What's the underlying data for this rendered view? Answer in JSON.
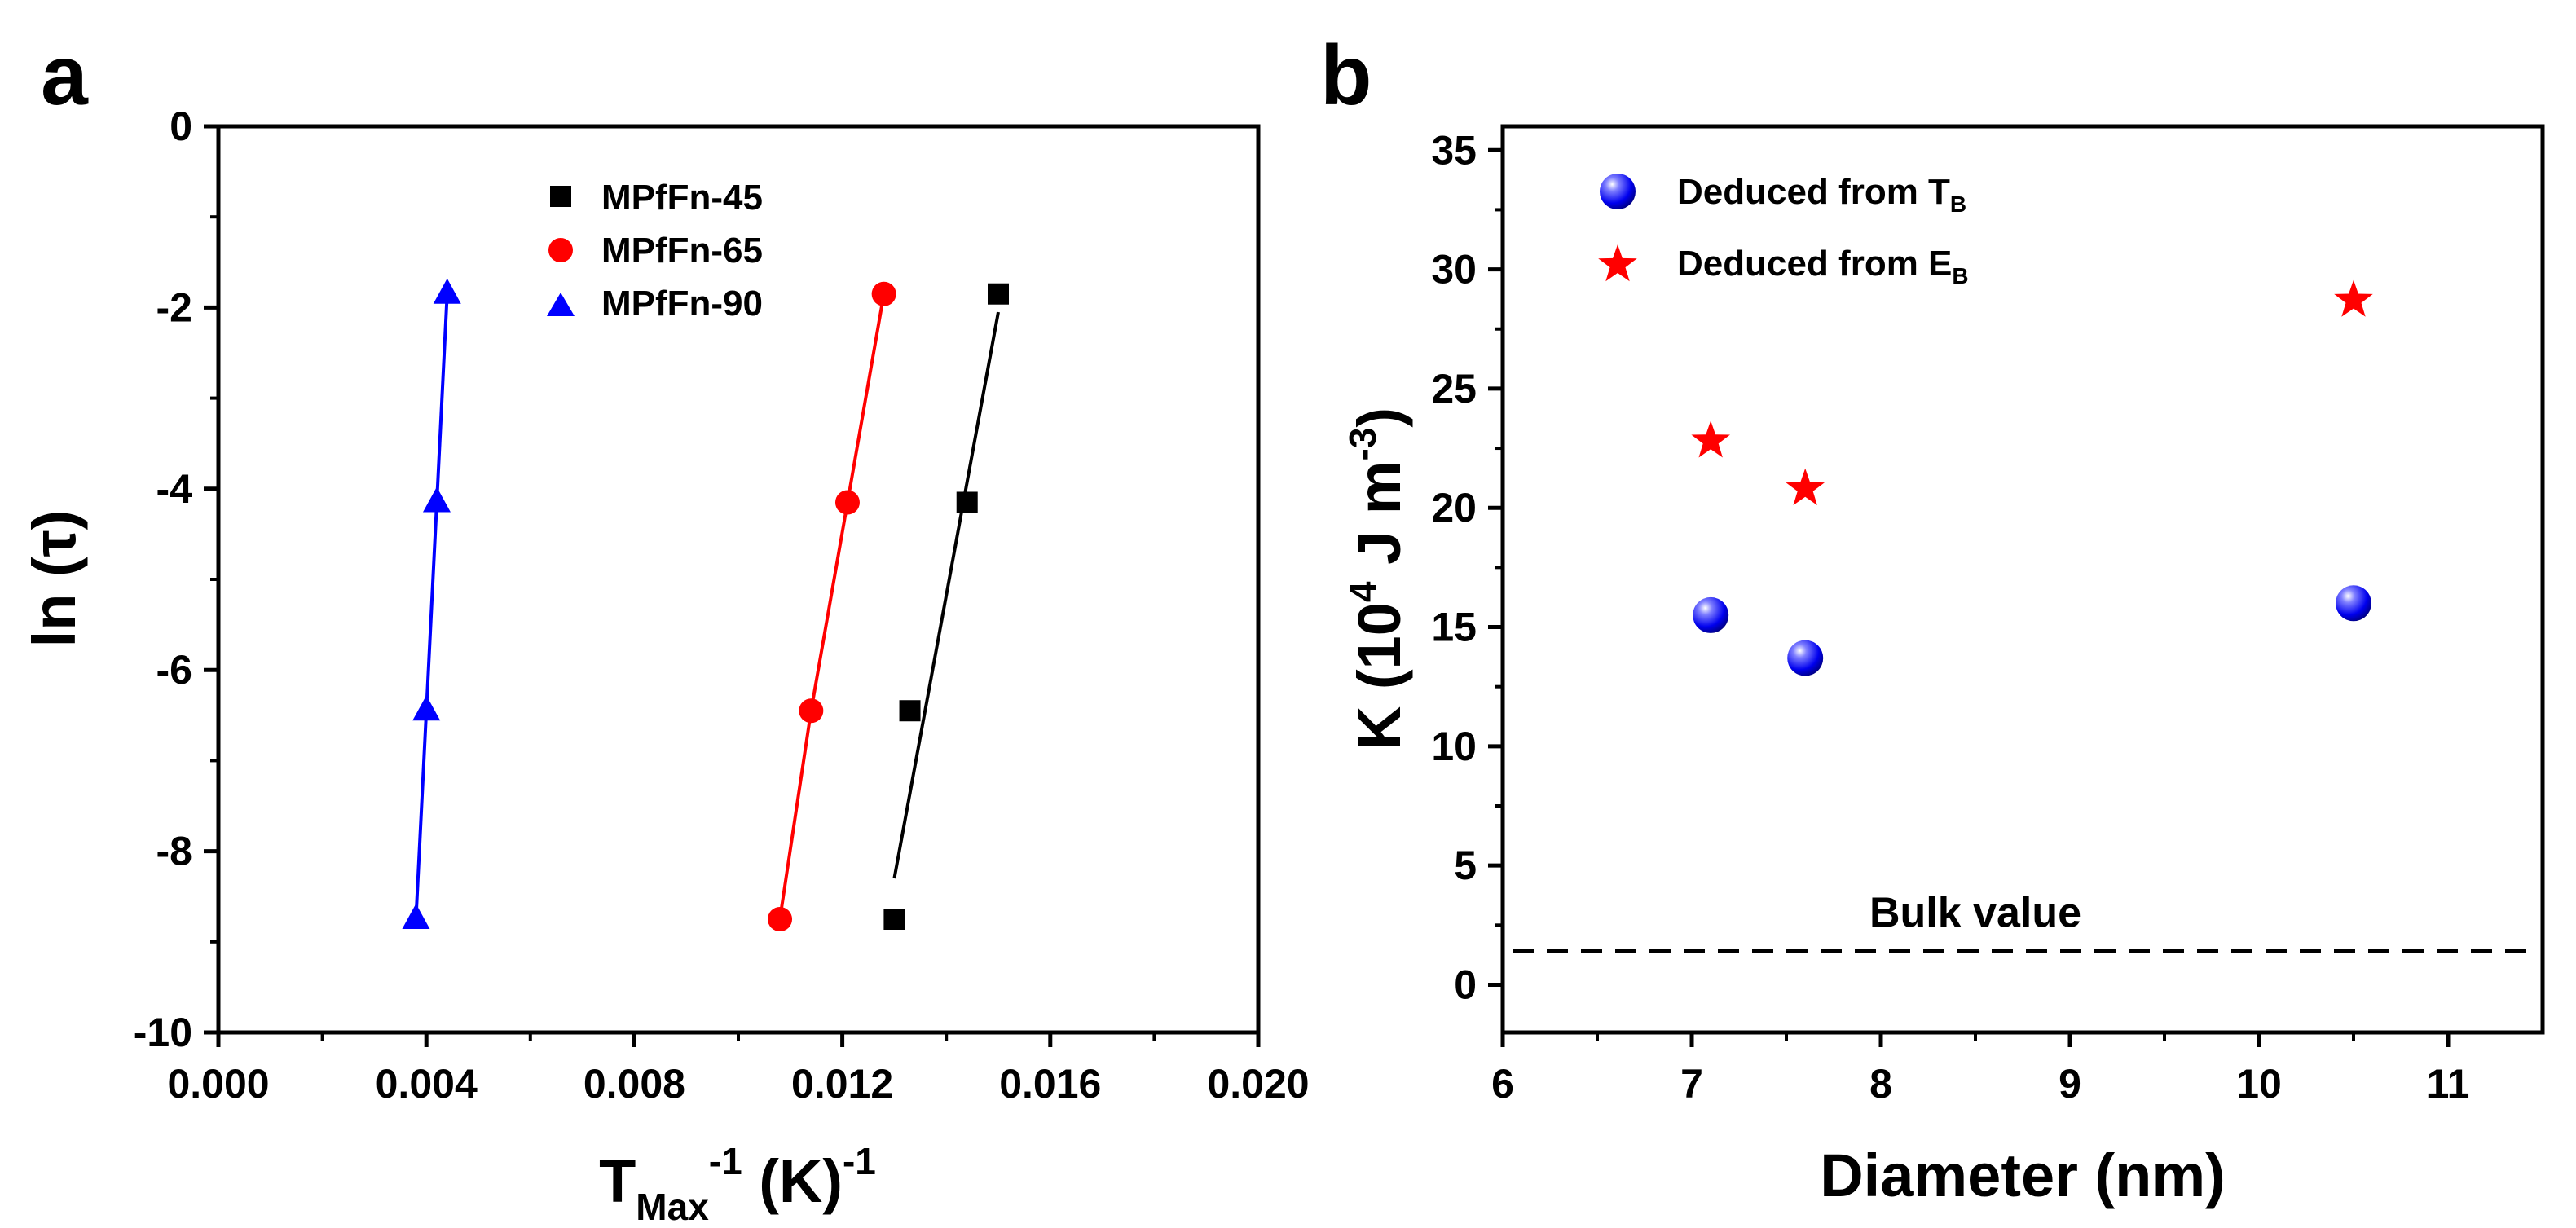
{
  "chart_data": [
    {
      "type": "scatter",
      "panel_label": "a",
      "xlabel": {
        "main": "T",
        "sub": "Max",
        "sup": "-1",
        "rest": " (K)",
        "sup2": "-1"
      },
      "ylabel": "ln (τ)",
      "xlim": [
        0.0,
        0.02
      ],
      "ylim": [
        -10,
        0
      ],
      "x_ticks": [
        0.0,
        0.004,
        0.008,
        0.012,
        0.016,
        0.02
      ],
      "x_tick_labels": [
        "0.000",
        "0.004",
        "0.008",
        "0.012",
        "0.016",
        "0.020"
      ],
      "y_ticks": [
        0,
        -2,
        -4,
        -6,
        -8,
        -10
      ],
      "y_tick_labels": [
        "0",
        "-2",
        "-4",
        "-6",
        "-8",
        "-10"
      ],
      "legend_position": "top-center",
      "series": [
        {
          "name": "MPfFn-45",
          "color": "#000000",
          "marker": "square",
          "line": "fit",
          "x": [
            0.015,
            0.0144,
            0.0133,
            0.013
          ],
          "y": [
            -1.85,
            -4.15,
            -6.45,
            -8.75
          ],
          "fit": {
            "x": [
              0.015,
              0.013
            ],
            "y": [
              -2.05,
              -8.3
            ]
          }
        },
        {
          "name": "MPfFn-65",
          "color": "#ff0000",
          "marker": "circle",
          "line": "connected",
          "x": [
            0.0128,
            0.0121,
            0.0114,
            0.0108
          ],
          "y": [
            -1.85,
            -4.15,
            -6.45,
            -8.75
          ]
        },
        {
          "name": "MPfFn-90",
          "color": "#0000ff",
          "marker": "triangle",
          "line": "connected",
          "x": [
            0.0044,
            0.0042,
            0.004,
            0.0038
          ],
          "y": [
            -1.85,
            -4.15,
            -6.45,
            -8.75
          ]
        }
      ]
    },
    {
      "type": "scatter",
      "panel_label": "b",
      "xlabel": "Diameter (nm)",
      "ylabel": {
        "main": "K (10",
        "sup": "4",
        "mid": " J m",
        "sup2": "-3",
        "end": ")"
      },
      "xlim": [
        6,
        11.5
      ],
      "ylim": [
        -2,
        36
      ],
      "x_ticks": [
        6,
        7,
        8,
        9,
        10,
        11
      ],
      "x_tick_labels": [
        "6",
        "7",
        "8",
        "9",
        "10",
        "11"
      ],
      "y_ticks": [
        0,
        5,
        10,
        15,
        20,
        25,
        30,
        35
      ],
      "y_tick_labels": [
        "0",
        "5",
        "10",
        "15",
        "20",
        "25",
        "30",
        "35"
      ],
      "legend_position": "top-left",
      "series": [
        {
          "name": "Deduced from T",
          "name_sub": "B",
          "color": "#0000ff",
          "marker": "sphere",
          "x": [
            7.1,
            7.6,
            10.5
          ],
          "y": [
            15.5,
            13.7,
            16.0
          ]
        },
        {
          "name": "Deduced from E",
          "name_sub": "B",
          "color": "#ff0000",
          "marker": "star",
          "x": [
            7.1,
            7.6,
            10.5
          ],
          "y": [
            22.8,
            20.8,
            28.7
          ]
        }
      ],
      "reference_line": {
        "label": "Bulk value",
        "y": 1.4,
        "style": "dashed",
        "color": "#000000"
      }
    }
  ]
}
